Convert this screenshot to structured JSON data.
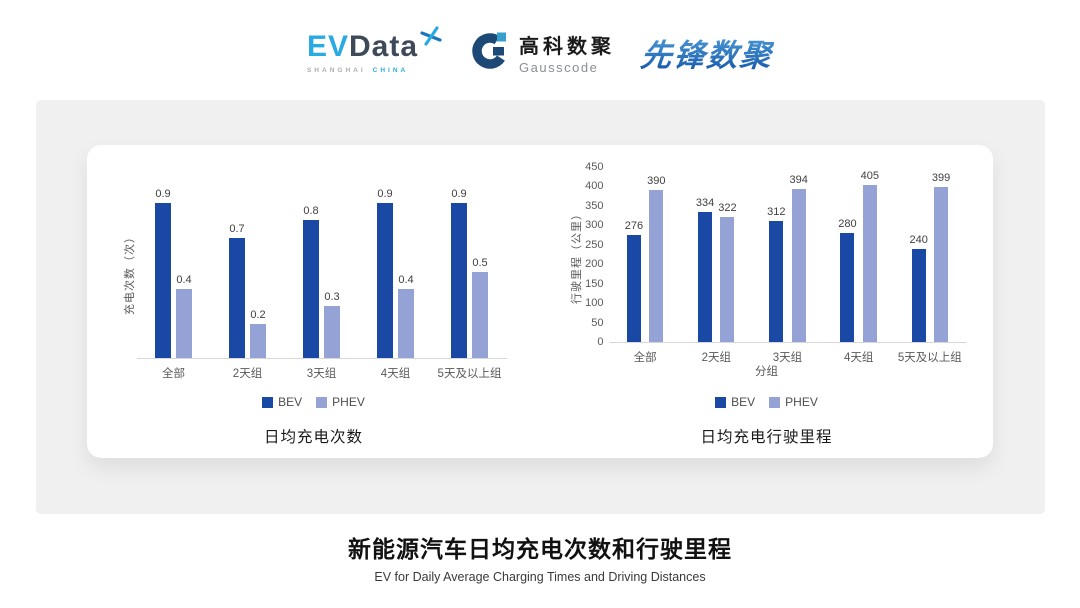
{
  "header": {
    "evdata": {
      "ev": "EV",
      "data": "Data",
      "sub_left": "SHANGHAI",
      "sub_right": "CHINA"
    },
    "gausscode": {
      "cn": "高科数聚",
      "en": "Gausscode"
    },
    "xianfeng": "先锋数聚"
  },
  "colors": {
    "bev": "#1A49A5",
    "phev": "#94A2D6",
    "evdata_blue": "#29ABE2",
    "evdata_dark": "#3E4A5A",
    "gauss_dark": "#1C4976",
    "gauss_light": "#35A0CE",
    "xianfeng_blue": "#2878C6",
    "axis_text": "#595959"
  },
  "chart_data": [
    {
      "type": "bar",
      "title": "日均充电次数",
      "ylabel": "充电次数（次）",
      "xlabel": "",
      "categories": [
        "全部",
        "2天组",
        "3天组",
        "4天组",
        "5天及以上组"
      ],
      "series": [
        {
          "name": "BEV",
          "color": "#1A49A5",
          "values": [
            0.9,
            0.7,
            0.8,
            0.9,
            0.9
          ]
        },
        {
          "name": "PHEV",
          "color": "#94A2D6",
          "values": [
            0.4,
            0.2,
            0.3,
            0.4,
            0.5
          ]
        }
      ],
      "ylim": [
        0,
        1.0
      ],
      "yticks": [],
      "grid": false,
      "legend_position": "bottom"
    },
    {
      "type": "bar",
      "title": "日均充电行驶里程",
      "ylabel": "行驶里程（公里）",
      "xlabel": "分组",
      "categories": [
        "全部",
        "2天组",
        "3天组",
        "4天组",
        "5天及以上组"
      ],
      "series": [
        {
          "name": "BEV",
          "color": "#1A49A5",
          "values": [
            276,
            334,
            312,
            280,
            240
          ]
        },
        {
          "name": "PHEV",
          "color": "#94A2D6",
          "values": [
            390,
            322,
            394,
            405,
            399
          ]
        }
      ],
      "ylim": [
        0,
        450
      ],
      "yticks": [
        450,
        400,
        350,
        300,
        250,
        200,
        150,
        100,
        50,
        0
      ],
      "grid": false,
      "legend_position": "bottom"
    }
  ],
  "footer": {
    "title": "新能源汽车日均充电次数和行驶里程",
    "subtitle": "EV for Daily Average Charging Times and Driving Distances"
  }
}
